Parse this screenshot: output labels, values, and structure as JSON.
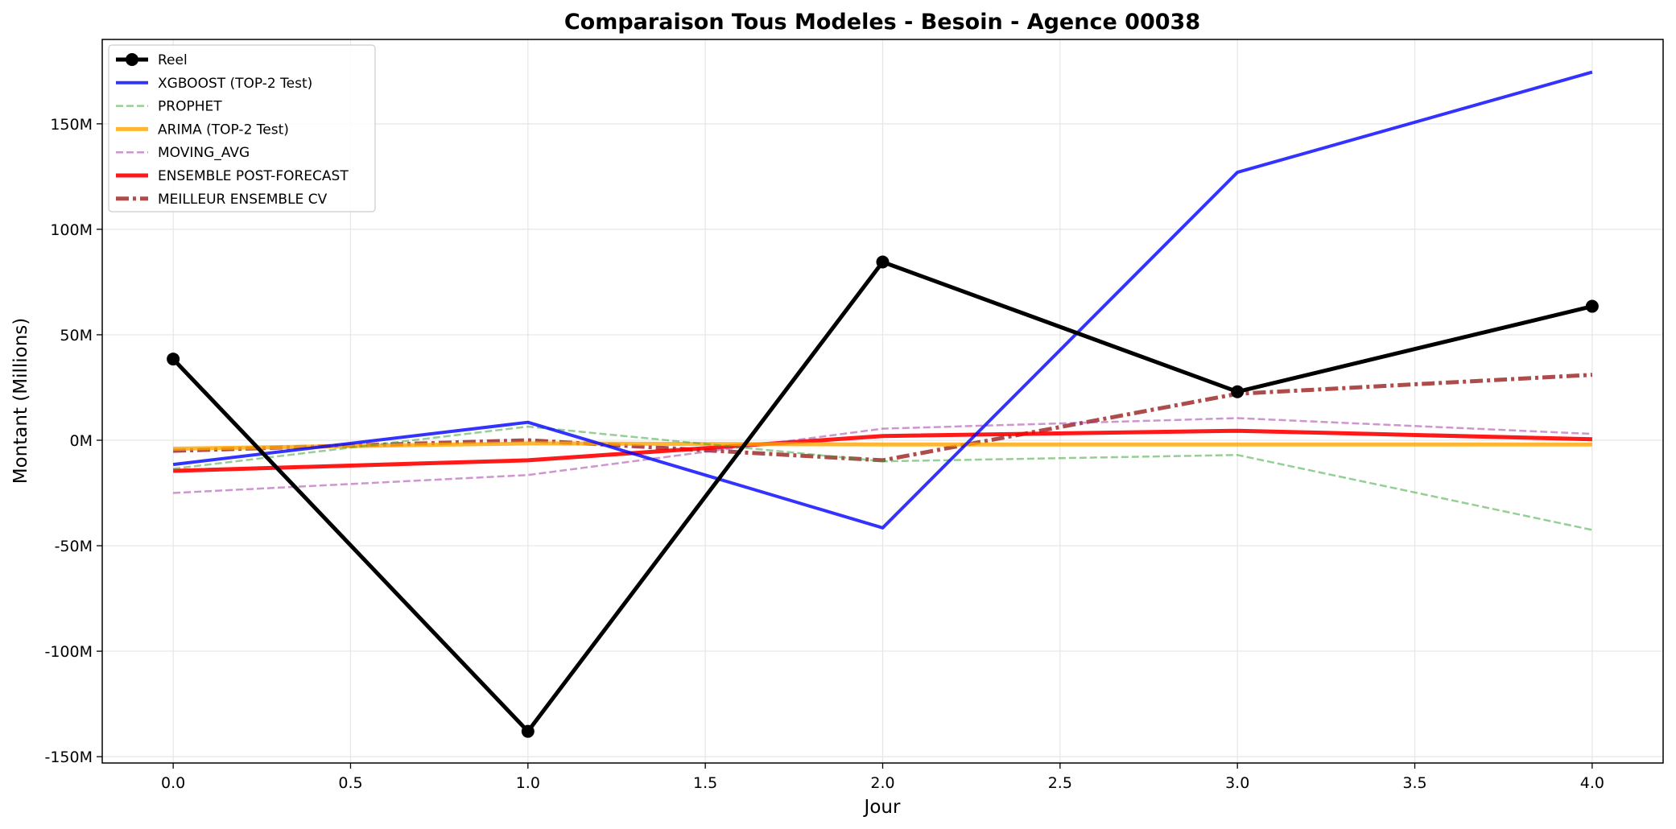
{
  "chart_data": {
    "type": "line",
    "title": "Comparaison Tous Modeles - Besoin - Agence 00038",
    "xlabel": "Jour",
    "ylabel": "Montant (Millions)",
    "xlim": [
      -0.2,
      4.2
    ],
    "ylim": [
      -153,
      190
    ],
    "x_ticks": [
      0.0,
      0.5,
      1.0,
      1.5,
      2.0,
      2.5,
      3.0,
      3.5,
      4.0
    ],
    "x_tick_labels": [
      "0.0",
      "0.5",
      "1.0",
      "1.5",
      "2.0",
      "2.5",
      "3.0",
      "3.5",
      "4.0"
    ],
    "y_ticks": [
      -150,
      -100,
      -50,
      0,
      50,
      100,
      150
    ],
    "y_tick_labels": [
      "-150M",
      "-100M",
      "-50M",
      "0M",
      "50M",
      "100M",
      "150M"
    ],
    "grid": true,
    "legend_position": "top-left",
    "x": [
      0,
      1,
      2,
      3,
      4
    ],
    "series": [
      {
        "name": "Reel",
        "values": [
          38.5,
          -138,
          84.5,
          23,
          63.5
        ],
        "color": "#000000",
        "dash": "solid",
        "marker": true,
        "width": 5,
        "opacity": 1
      },
      {
        "name": "XGBOOST (TOP-2 Test)",
        "values": [
          -11.5,
          8.5,
          -41.5,
          127,
          174.5
        ],
        "color": "#0000ff",
        "dash": "solid",
        "marker": false,
        "width": 4,
        "opacity": 0.8
      },
      {
        "name": "PROPHET",
        "values": [
          -13.5,
          6.5,
          -10,
          -7,
          -42.5
        ],
        "color": "#2ca02c",
        "dash": "dashed",
        "marker": false,
        "width": 2.5,
        "opacity": 0.5
      },
      {
        "name": "ARIMA (TOP-2 Test)",
        "values": [
          -4,
          -1.5,
          -2,
          -2,
          -2
        ],
        "color": "#ffa500",
        "dash": "solid",
        "marker": false,
        "width": 5,
        "opacity": 0.8
      },
      {
        "name": "MOVING_AVG",
        "values": [
          -25,
          -16.5,
          5.5,
          10.5,
          3
        ],
        "color": "#a02ca0",
        "dash": "dashed",
        "marker": false,
        "width": 2.5,
        "opacity": 0.5
      },
      {
        "name": "ENSEMBLE POST-FORECAST",
        "values": [
          -14.5,
          -9.5,
          2,
          4.5,
          0.5
        ],
        "color": "#ff0000",
        "dash": "solid",
        "marker": false,
        "width": 5,
        "opacity": 0.9
      },
      {
        "name": "MEILLEUR ENSEMBLE CV",
        "values": [
          -5,
          0,
          -9.5,
          22,
          31
        ],
        "color": "#8b0000",
        "dash": "dashdot",
        "marker": false,
        "width": 5,
        "opacity": 0.7
      }
    ]
  }
}
